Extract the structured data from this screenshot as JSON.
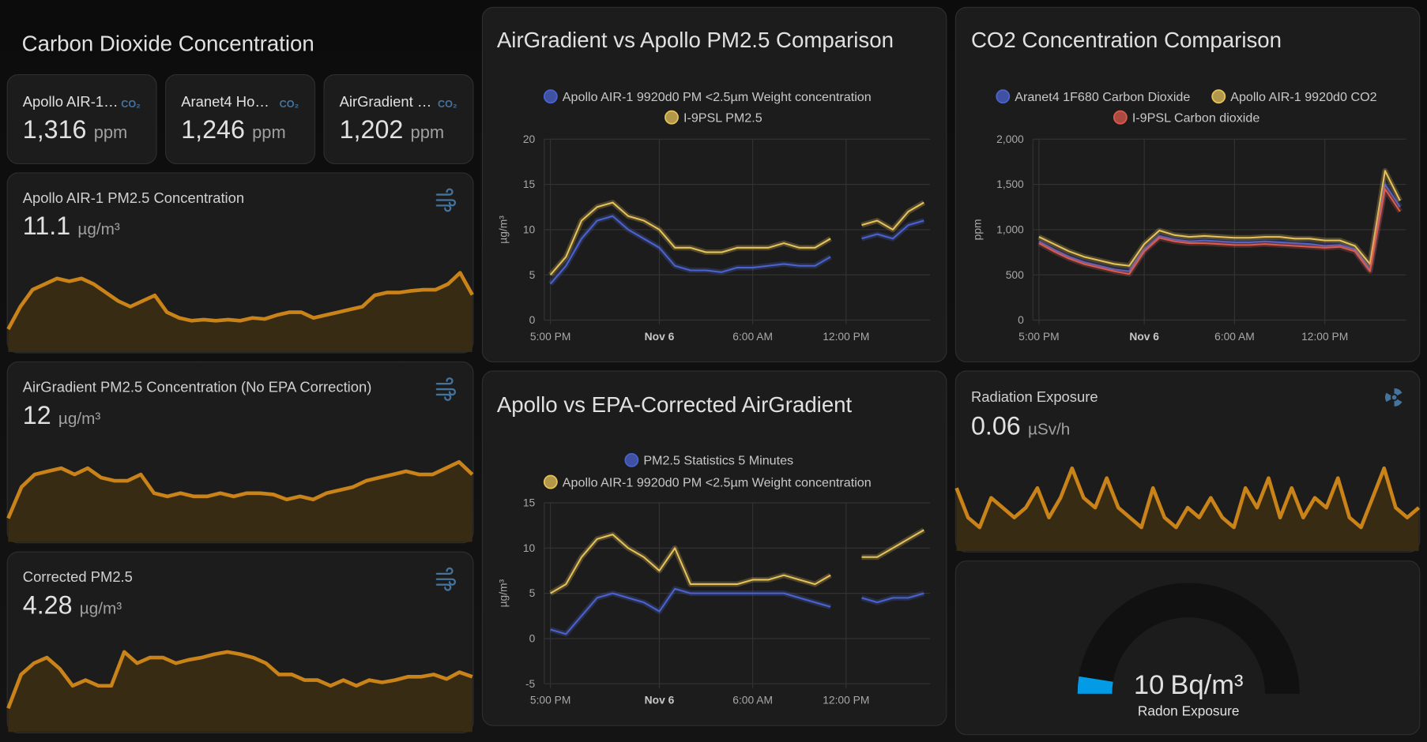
{
  "header": {
    "title": "Carbon Dioxide Concentration"
  },
  "co2_tiles": [
    {
      "name": "Apollo AIR-1…",
      "badge": "CO₂",
      "value": "1,316",
      "unit": "ppm"
    },
    {
      "name": "Aranet4 Ho…",
      "badge": "CO₂",
      "value": "1,246",
      "unit": "ppm"
    },
    {
      "name": "AirGradient …",
      "badge": "CO₂",
      "value": "1,202",
      "unit": "ppm"
    }
  ],
  "sensors": [
    {
      "title": "Apollo AIR-1 PM2.5 Concentration",
      "value": "11.1",
      "unit": "µg/m³",
      "sparkline": [
        5,
        9,
        12,
        13,
        14,
        13.5,
        14,
        13,
        11.5,
        10,
        9,
        10,
        11,
        8,
        7,
        6.5,
        6.7,
        6.5,
        6.7,
        6.5,
        7,
        6.8,
        7.5,
        8,
        8,
        7,
        7.5,
        8,
        8.5,
        9,
        11,
        11.5,
        11.5,
        11.8,
        12,
        12,
        13,
        15,
        11.1
      ]
    },
    {
      "title": "AirGradient PM2.5 Concentration (No EPA Correction)",
      "value": "12",
      "unit": "µg/m³",
      "sparkline": [
        5,
        10,
        12,
        12.5,
        13,
        12,
        13,
        11.5,
        11,
        11,
        12,
        9,
        8.5,
        9,
        8.5,
        8.5,
        9,
        8.5,
        9,
        9,
        8.8,
        8,
        8.5,
        8,
        9,
        9.5,
        10,
        11,
        11.5,
        12,
        12.5,
        12,
        12,
        13,
        14,
        12
      ]
    },
    {
      "title": "Corrected PM2.5",
      "value": "4.28",
      "unit": "µg/m³",
      "sparkline": [
        3,
        6,
        7,
        7.5,
        6.5,
        5,
        5.5,
        5,
        5,
        8,
        7,
        7.5,
        7.5,
        7,
        7.3,
        7.5,
        7.8,
        8,
        7.8,
        7.5,
        7,
        6,
        6,
        5.5,
        5.5,
        5,
        5.5,
        5,
        5.5,
        5.3,
        5.5,
        5.8,
        5.8,
        6,
        5.6,
        6.2,
        5.8
      ]
    }
  ],
  "radiation": {
    "title": "Radiation Exposure",
    "value": "0.06",
    "unit": "µSv/h",
    "sparkline": [
      0.09,
      0.06,
      0.05,
      0.08,
      0.07,
      0.06,
      0.07,
      0.09,
      0.06,
      0.08,
      0.11,
      0.08,
      0.07,
      0.1,
      0.07,
      0.06,
      0.05,
      0.09,
      0.06,
      0.05,
      0.07,
      0.06,
      0.08,
      0.06,
      0.05,
      0.09,
      0.07,
      0.1,
      0.06,
      0.09,
      0.06,
      0.08,
      0.07,
      0.1,
      0.06,
      0.05,
      0.08,
      0.11,
      0.07,
      0.06,
      0.07
    ]
  },
  "radon": {
    "value": 10,
    "unit": "Bq/m³",
    "label": "Radon Exposure",
    "range": [
      0,
      200
    ],
    "color": "#039be5"
  },
  "chart_data": [
    {
      "type": "line",
      "title": "AirGradient vs Apollo PM2.5 Comparison",
      "y_label": "µg/m³",
      "x": [
        17,
        18,
        19,
        20,
        21,
        22,
        23,
        24,
        25,
        26,
        27,
        28,
        29,
        30,
        31,
        32,
        33,
        34,
        35,
        36,
        37,
        38,
        39,
        40,
        41
      ],
      "xlim": [
        16.6,
        41.4
      ],
      "xticks": [
        {
          "value": 17,
          "label": "5:00 PM"
        },
        {
          "value": 24,
          "label": "Nov 6"
        },
        {
          "value": 30,
          "label": "6:00 AM"
        },
        {
          "value": 36,
          "label": "12:00 PM"
        }
      ],
      "ylim": [
        0,
        20
      ],
      "yticks": [
        0,
        5,
        10,
        15,
        20
      ],
      "grid": true,
      "series": [
        {
          "name": "Apollo AIR-1 9920d0 PM <2.5µm Weight concentration",
          "color": "#4a63cf",
          "values": [
            4,
            6,
            9,
            11,
            11.5,
            10,
            9,
            8,
            6,
            5.5,
            5.5,
            5.3,
            5.8,
            5.8,
            6,
            6.2,
            6,
            6,
            7,
            null,
            9,
            9.5,
            9,
            10.5,
            11
          ]
        },
        {
          "name": "I-9PSL PM2.5",
          "color": "#e6c25a",
          "values": [
            5,
            7,
            11,
            12.5,
            13,
            11.5,
            11,
            10,
            8,
            8,
            7.5,
            7.5,
            8,
            8,
            8,
            8.5,
            8,
            8,
            9,
            null,
            10.5,
            11,
            10,
            12,
            13
          ]
        }
      ]
    },
    {
      "type": "line",
      "title": "CO2 Concentration Comparison",
      "y_label": "ppm",
      "x": [
        17,
        18,
        19,
        20,
        21,
        22,
        23,
        24,
        25,
        26,
        27,
        28,
        29,
        30,
        31,
        32,
        33,
        34,
        35,
        36,
        37,
        38,
        39,
        40,
        41
      ],
      "xlim": [
        16.6,
        41.4
      ],
      "xticks": [
        {
          "value": 17,
          "label": "5:00 PM"
        },
        {
          "value": 24,
          "label": "Nov 6"
        },
        {
          "value": 30,
          "label": "6:00 AM"
        },
        {
          "value": 36,
          "label": "12:00 PM"
        }
      ],
      "ylim": [
        0,
        2000
      ],
      "yticks": [
        0,
        500,
        {
          "value": 1000,
          "label": "1,000"
        },
        {
          "value": 1500,
          "label": "1,500"
        },
        {
          "value": 2000,
          "label": "2,000"
        }
      ],
      "grid": true,
      "series": [
        {
          "name": "Aranet4 1F680 Carbon Dioxide",
          "color": "#4a63cf",
          "values": [
            870,
            780,
            700,
            640,
            600,
            560,
            540,
            780,
            930,
            890,
            870,
            880,
            870,
            860,
            860,
            870,
            860,
            850,
            840,
            820,
            830,
            780,
            560,
            1500,
            1250
          ]
        },
        {
          "name": "Apollo AIR-1 9920d0 CO2",
          "color": "#e6c25a",
          "values": [
            920,
            840,
            760,
            700,
            660,
            620,
            600,
            840,
            990,
            940,
            920,
            930,
            920,
            910,
            910,
            920,
            920,
            900,
            900,
            880,
            880,
            820,
            620,
            1650,
            1320
          ]
        },
        {
          "name": "I-9PSL Carbon dioxide",
          "color": "#dc5a4c",
          "values": [
            850,
            760,
            680,
            620,
            580,
            540,
            510,
            760,
            910,
            870,
            850,
            850,
            840,
            830,
            830,
            840,
            830,
            820,
            810,
            800,
            810,
            760,
            540,
            1450,
            1200
          ]
        }
      ]
    },
    {
      "type": "line",
      "title": "Apollo vs EPA-Corrected AirGradient",
      "y_label": "µg/m³",
      "x": [
        17,
        18,
        19,
        20,
        21,
        22,
        23,
        24,
        25,
        26,
        27,
        28,
        29,
        30,
        31,
        32,
        33,
        34,
        35,
        36,
        37,
        38,
        39,
        40,
        41
      ],
      "xlim": [
        16.6,
        41.4
      ],
      "xticks": [
        {
          "value": 17,
          "label": "5:00 PM"
        },
        {
          "value": 24,
          "label": "Nov 6"
        },
        {
          "value": 30,
          "label": "6:00 AM"
        },
        {
          "value": 36,
          "label": "12:00 PM"
        }
      ],
      "ylim": [
        -5,
        15
      ],
      "yticks": [
        -5,
        0,
        5,
        10,
        15
      ],
      "grid": true,
      "series": [
        {
          "name": "PM2.5 Statistics 5 Minutes",
          "color": "#4a63cf",
          "values": [
            1,
            0.5,
            2.5,
            4.5,
            5,
            4.5,
            4,
            3,
            5.5,
            5,
            5,
            5,
            5,
            5,
            5,
            5,
            4.5,
            4,
            3.5,
            null,
            4.5,
            4,
            4.5,
            4.5,
            5
          ]
        },
        {
          "name": "Apollo AIR-1 9920d0 PM <2.5µm Weight concentration",
          "color": "#e6c25a",
          "values": [
            5,
            6,
            9,
            11,
            11.5,
            10,
            9,
            7.5,
            10,
            6,
            6,
            6,
            6,
            6.5,
            6.5,
            7,
            6.5,
            6,
            7,
            null,
            9,
            9,
            10,
            11,
            12
          ]
        }
      ]
    }
  ]
}
